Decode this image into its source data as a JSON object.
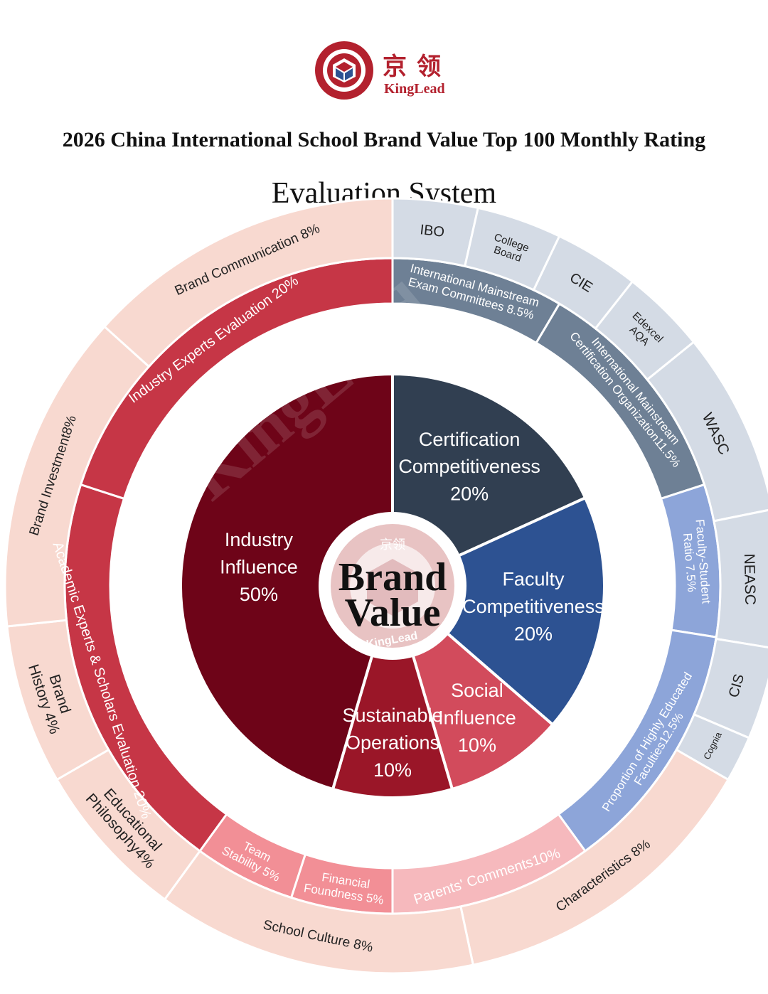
{
  "logo": {
    "cn": "京领",
    "en": "KingLead",
    "seal_top": "京领",
    "seal_bottom": "KingLead"
  },
  "title": "2026 China International School Brand Value Top 100 Monthly Rating",
  "subtitle": "Evaluation System",
  "watermark": "KingLead",
  "colors": {
    "industry": "#6e0418",
    "sustainable": "#9a1628",
    "social": "#d24b5c",
    "faculty": "#2d5292",
    "certification": "#313f51",
    "band_red": "#c63646",
    "band_slate": "#6e8095",
    "band_blue": "#8da5d9",
    "band_pink": "#f28f96",
    "outer_pink": "#f8d9d0",
    "outer_grey": "#d4dbe5",
    "outer_lightpink": "#f6b9bd"
  },
  "chart_data": {
    "type": "sunburst",
    "center": {
      "line1": "Brand",
      "line2": "Value"
    },
    "inner": [
      {
        "name": "Certification Competitiveness",
        "lines": [
          "Certification",
          "Competitiveness",
          "20%"
        ],
        "value": 20,
        "color": "#313f51",
        "label_color": "#ffffff"
      },
      {
        "name": "Faculty Competitiveness",
        "lines": [
          "Faculty",
          "Competitiveness",
          "20%"
        ],
        "value": 20,
        "color": "#2d5292",
        "label_color": "#ffffff"
      },
      {
        "name": "Social Influence",
        "lines": [
          "Social",
          "Influence",
          "10%"
        ],
        "value": 10,
        "color": "#d24b5c",
        "label_color": "#ffffff"
      },
      {
        "name": "Sustainable Operations",
        "lines": [
          "Sustainable",
          "Operations",
          "10%"
        ],
        "value": 10,
        "color": "#9a1628",
        "label_color": "#ffffff"
      },
      {
        "name": "Industry Influence",
        "lines": [
          "Industry",
          "Influence",
          "50%"
        ],
        "value": 50,
        "color": "#6e0418",
        "label_color": "#ffffff"
      }
    ],
    "middle": [
      {
        "lines": [
          "International Mainstream",
          "Exam Committees 8.5%"
        ],
        "value": 8.5,
        "color": "#6e8095",
        "label_color": "#ffffff"
      },
      {
        "lines": [
          "International Mainstream",
          "Certification Organization11.5%"
        ],
        "value": 11.5,
        "color": "#6e8095",
        "label_color": "#ffffff"
      },
      {
        "lines": [
          "Faculty-Student",
          "Ratio 7.5%"
        ],
        "value": 7.5,
        "color": "#8da5d9",
        "label_color": "#ffffff"
      },
      {
        "lines": [
          "Proportion of Highly Educated",
          "Faculties12.5%"
        ],
        "value": 12.5,
        "color": "#8da5d9",
        "label_color": "#ffffff"
      },
      {
        "lines": [
          "Parents' Comments10%"
        ],
        "value": 10,
        "color": "#f6b9bd",
        "label_color": "#ffffff"
      },
      {
        "lines": [
          "Financial",
          "Foundness 5%"
        ],
        "value": 5,
        "color": "#f28f96",
        "label_color": "#ffffff"
      },
      {
        "lines": [
          "Team",
          "Stability 5%"
        ],
        "value": 5,
        "color": "#f28f96",
        "label_color": "#ffffff"
      },
      {
        "lines": [
          "Academic Experts & Scholars Evaluation 20%"
        ],
        "value": 20,
        "color": "#c63646",
        "label_color": "#ffffff"
      },
      {
        "lines": [
          "Industry Experts Evaluation 20%"
        ],
        "value": 20,
        "color": "#c63646",
        "label_color": "#ffffff"
      }
    ],
    "outer": [
      {
        "lines": [
          "IBO"
        ],
        "value": 2.125,
        "color": "#d4dbe5",
        "label_color": "#222222"
      },
      {
        "lines": [
          "College",
          "Board"
        ],
        "value": 2.125,
        "color": "#d4dbe5",
        "label_color": "#222222"
      },
      {
        "lines": [
          "CIE"
        ],
        "value": 2.125,
        "color": "#d4dbe5",
        "label_color": "#222222"
      },
      {
        "lines": [
          "Edexcel",
          "AQA"
        ],
        "value": 2.125,
        "color": "#d4dbe5",
        "label_color": "#222222"
      },
      {
        "lines": [
          "WASC"
        ],
        "value": 4.6,
        "color": "#d4dbe5",
        "label_color": "#222222"
      },
      {
        "lines": [
          "NEASC"
        ],
        "value": 3.45,
        "color": "#d4dbe5",
        "label_color": "#222222"
      },
      {
        "lines": [
          "CIS"
        ],
        "value": 2.3,
        "color": "#d4dbe5",
        "label_color": "#222222"
      },
      {
        "lines": [
          "Cognia"
        ],
        "value": 1.15,
        "color": "#d4dbe5",
        "label_color": "#222222"
      },
      {
        "lines": [
          "Characteristics 8%"
        ],
        "value": 8,
        "color": "#f8d9d0",
        "label_color": "#222222"
      },
      {
        "lines": [
          "School Culture 8%"
        ],
        "value": 8,
        "color": "#f8d9d0",
        "label_color": "#222222"
      },
      {
        "lines": [
          "Educational",
          "Philosophy4%"
        ],
        "value": 4,
        "color": "#f8d9d0",
        "label_color": "#222222"
      },
      {
        "lines": [
          "Brand",
          "History 4%"
        ],
        "value": 4,
        "color": "#f8d9d0",
        "label_color": "#222222"
      },
      {
        "lines": [
          "Brand Investment8%"
        ],
        "value": 8,
        "color": "#f8d9d0",
        "label_color": "#222222"
      },
      {
        "lines": [
          "Brand Communication 8%"
        ],
        "value": 8,
        "color": "#f8d9d0",
        "label_color": "#222222"
      }
    ]
  }
}
